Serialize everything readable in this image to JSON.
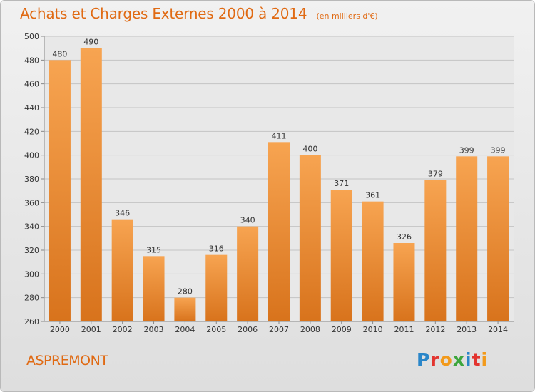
{
  "header": {
    "title": "Achats et Charges Externes 2000 à 2014",
    "subtitle": "(en milliers d'€)"
  },
  "footer": {
    "place": "ASPREMONT",
    "brand": "Proxiti",
    "brand_colors": [
      "#2a86c9",
      "#e3342f",
      "#f29a1b",
      "#3da63d",
      "#2a86c9",
      "#e3342f",
      "#f29a1b"
    ]
  },
  "colors": {
    "bar_light": "#f7a451",
    "bar_dark": "#d8731c",
    "accent": "#e06a13",
    "grid": "#c4c4c4",
    "plot_bg": "#e8e8e8"
  },
  "chart_data": {
    "type": "bar",
    "categories": [
      "2000",
      "2001",
      "2002",
      "2003",
      "2004",
      "2005",
      "2006",
      "2007",
      "2008",
      "2009",
      "2010",
      "2011",
      "2012",
      "2013",
      "2014"
    ],
    "values": [
      480,
      490,
      346,
      315,
      280,
      316,
      340,
      411,
      400,
      371,
      361,
      326,
      379,
      399,
      399
    ],
    "data_labels": [
      "480",
      "490",
      "346",
      "315",
      "280",
      "316",
      "340",
      "411",
      "400",
      "371",
      "361",
      "326",
      "379",
      "399",
      "399"
    ],
    "yticks": [
      260,
      280,
      300,
      320,
      340,
      360,
      380,
      400,
      420,
      440,
      460,
      480,
      500
    ],
    "ylim": [
      260,
      500
    ],
    "grid": true,
    "title": "Achats et Charges Externes 2000 à 2014",
    "xlabel": "",
    "ylabel": ""
  }
}
